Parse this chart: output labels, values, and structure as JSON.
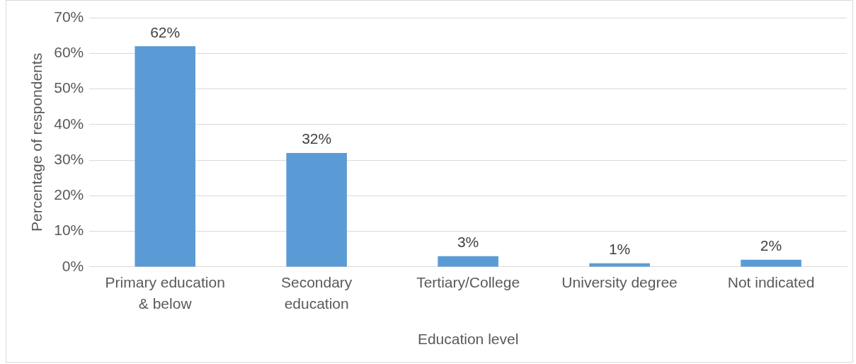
{
  "chart_data": {
    "type": "bar",
    "xlabel": "Education level",
    "ylabel": "Percentage of respondents",
    "categories": [
      "Primary education & below",
      "Secondary education",
      "Tertiary/College",
      "University degree",
      "Not indicated"
    ],
    "values": [
      62,
      32,
      3,
      1,
      2
    ],
    "value_labels": [
      "62%",
      "32%",
      "3%",
      "1%",
      "2%"
    ],
    "color": "#5b9bd5",
    "ylim": [
      0,
      70
    ],
    "yticks": [
      {
        "value": 0,
        "label": "0%"
      },
      {
        "value": 10,
        "label": "10%"
      },
      {
        "value": 20,
        "label": "20%"
      },
      {
        "value": 30,
        "label": "30%"
      },
      {
        "value": 40,
        "label": "40%"
      },
      {
        "value": 50,
        "label": "50%"
      },
      {
        "value": 60,
        "label": "60%"
      },
      {
        "value": 70,
        "label": "70%"
      }
    ],
    "grid": "y",
    "legend": false
  }
}
